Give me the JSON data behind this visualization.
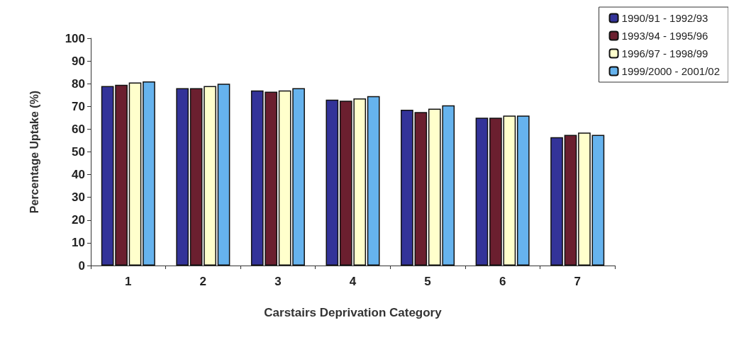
{
  "chart_data": {
    "type": "bar",
    "xlabel": "Carstairs Deprivation Category",
    "ylabel": "Percentage Uptake (%)",
    "categories": [
      "1",
      "2",
      "3",
      "4",
      "5",
      "6",
      "7"
    ],
    "series": [
      {
        "name": "1990/91 - 1992/93",
        "color": "#333399",
        "values": [
          79,
          78,
          77,
          73,
          68.5,
          65,
          56.5
        ]
      },
      {
        "name": "1993/94 - 1995/96",
        "color": "#6b1f2f",
        "values": [
          79.5,
          78,
          76.5,
          72.5,
          67.5,
          65,
          57.5
        ]
      },
      {
        "name": "1996/97 - 1998/99",
        "color": "#ffffcc",
        "values": [
          80.5,
          79,
          77,
          73.5,
          69,
          66,
          58.5
        ]
      },
      {
        "name": "1999/2000 - 2001/02",
        "color": "#66b3ee",
        "values": [
          81,
          80,
          78,
          74.5,
          70.5,
          66,
          57.5
        ]
      }
    ],
    "ylim": [
      0,
      100
    ],
    "yticks": [
      0,
      10,
      20,
      30,
      40,
      50,
      60,
      70,
      80,
      90,
      100
    ],
    "grid": false,
    "legend": "top right"
  }
}
